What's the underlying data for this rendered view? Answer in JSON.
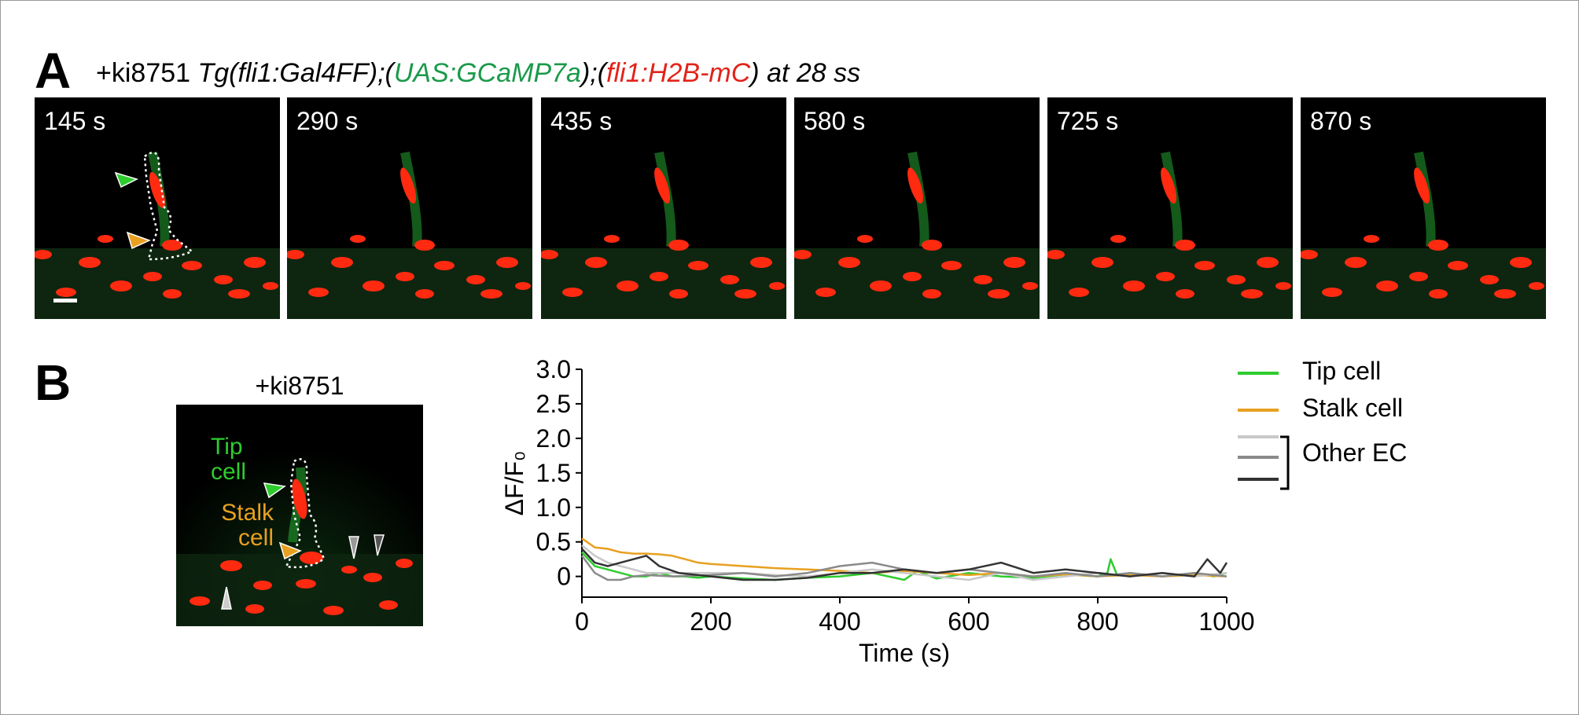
{
  "panel_a": {
    "letter": "A",
    "title_prefix": "+ki8751 ",
    "title_tg": "Tg(fli1:Gal4FF);(",
    "title_uas": "UAS:GCaMP7a",
    "title_mid": ");(",
    "title_fli": "fli1:H2B-mC",
    "title_suffix": ") at 28 ss",
    "frames": [
      "145 s",
      "290 s",
      "435 s",
      "580 s",
      "725 s",
      "870 s"
    ]
  },
  "panel_b": {
    "letter": "B",
    "image_title": "+ki8751",
    "tip_label_1": "Tip",
    "tip_label_2": "cell",
    "stalk_label_1": "Stalk",
    "stalk_label_2": "cell"
  },
  "colors": {
    "tip": "#2ecc2e",
    "stalk": "#e8a020",
    "other1": "#c8c8c8",
    "other2": "#8a8a8a",
    "other3": "#333333",
    "red_nucleus": "#ff2a10",
    "green_signal": "#1f8a2a"
  },
  "chart_data": {
    "type": "line",
    "xlabel": "Time (s)",
    "ylabel": "ΔF/F₀",
    "xlim": [
      0,
      1000
    ],
    "ylim": [
      -0.3,
      3.0
    ],
    "xticks": [
      "0",
      "200",
      "400",
      "600",
      "800",
      "1000"
    ],
    "yticks": [
      "0",
      "0.5",
      "1.0",
      "1.5",
      "2.0",
      "2.5",
      "3.0"
    ],
    "legend": {
      "placement": "right",
      "tip": "Tip cell",
      "stalk": "Stalk cell",
      "other": "Other EC"
    },
    "series": [
      {
        "name": "Tip cell",
        "color": "#2ecc2e",
        "x": [
          0,
          20,
          40,
          60,
          80,
          100,
          120,
          140,
          160,
          180,
          200,
          250,
          300,
          350,
          400,
          450,
          500,
          520,
          550,
          600,
          650,
          700,
          750,
          800,
          815,
          820,
          830,
          850,
          900,
          950,
          980,
          1000
        ],
        "y": [
          0.35,
          0.15,
          0.1,
          0.05,
          0.0,
          0.0,
          0.05,
          0.0,
          0.0,
          -0.02,
          0.0,
          -0.03,
          -0.05,
          -0.02,
          0.0,
          0.05,
          -0.05,
          0.08,
          -0.03,
          0.05,
          0.0,
          -0.02,
          0.03,
          0.0,
          0.05,
          0.25,
          0.02,
          0.05,
          0.0,
          0.05,
          0.0,
          0.05
        ]
      },
      {
        "name": "Stalk cell",
        "color": "#e8a020",
        "x": [
          0,
          20,
          40,
          60,
          80,
          100,
          120,
          140,
          160,
          180,
          200,
          250,
          300,
          350,
          400,
          450,
          500,
          550,
          600,
          650,
          700,
          750,
          800,
          850,
          900,
          950,
          1000
        ],
        "y": [
          0.55,
          0.42,
          0.4,
          0.35,
          0.33,
          0.33,
          0.32,
          0.3,
          0.25,
          0.2,
          0.18,
          0.15,
          0.12,
          0.1,
          0.08,
          0.05,
          0.08,
          0.05,
          0.02,
          0.05,
          0.0,
          0.03,
          0.0,
          0.02,
          0.0,
          0.02,
          0.0
        ]
      },
      {
        "name": "",
        "color": "#c8c8c8",
        "x": [
          0,
          20,
          40,
          60,
          80,
          100,
          140,
          200,
          250,
          300,
          350,
          400,
          450,
          500,
          550,
          600,
          650,
          700,
          750,
          800,
          850,
          900,
          950,
          1000
        ],
        "y": [
          0.45,
          0.3,
          0.2,
          0.15,
          0.1,
          0.05,
          0.05,
          0.05,
          0.05,
          0.02,
          0.0,
          0.05,
          0.1,
          0.05,
          0.0,
          -0.05,
          0.05,
          -0.05,
          0.0,
          0.05,
          0.0,
          0.05,
          0.0,
          0.05
        ]
      },
      {
        "name": "",
        "color": "#8a8a8a",
        "x": [
          0,
          20,
          40,
          60,
          80,
          100,
          140,
          200,
          250,
          300,
          350,
          400,
          450,
          500,
          550,
          600,
          650,
          700,
          750,
          800,
          850,
          900,
          950,
          1000
        ],
        "y": [
          0.3,
          0.05,
          -0.05,
          -0.05,
          0.0,
          0.02,
          0.0,
          0.02,
          0.05,
          0.0,
          0.05,
          0.15,
          0.2,
          0.1,
          0.05,
          0.1,
          0.05,
          0.0,
          0.05,
          0.0,
          0.05,
          0.0,
          0.05,
          0.0
        ]
      },
      {
        "name": "",
        "color": "#333333",
        "x": [
          0,
          20,
          40,
          60,
          80,
          100,
          120,
          150,
          200,
          250,
          300,
          350,
          400,
          450,
          500,
          550,
          600,
          650,
          700,
          750,
          800,
          850,
          900,
          950,
          970,
          990,
          1000
        ],
        "y": [
          0.4,
          0.2,
          0.15,
          0.2,
          0.25,
          0.3,
          0.15,
          0.05,
          0.0,
          -0.05,
          -0.05,
          -0.02,
          0.05,
          0.05,
          0.1,
          0.05,
          0.1,
          0.2,
          0.05,
          0.1,
          0.05,
          0.0,
          0.05,
          0.0,
          0.25,
          0.05,
          0.2
        ]
      }
    ]
  }
}
